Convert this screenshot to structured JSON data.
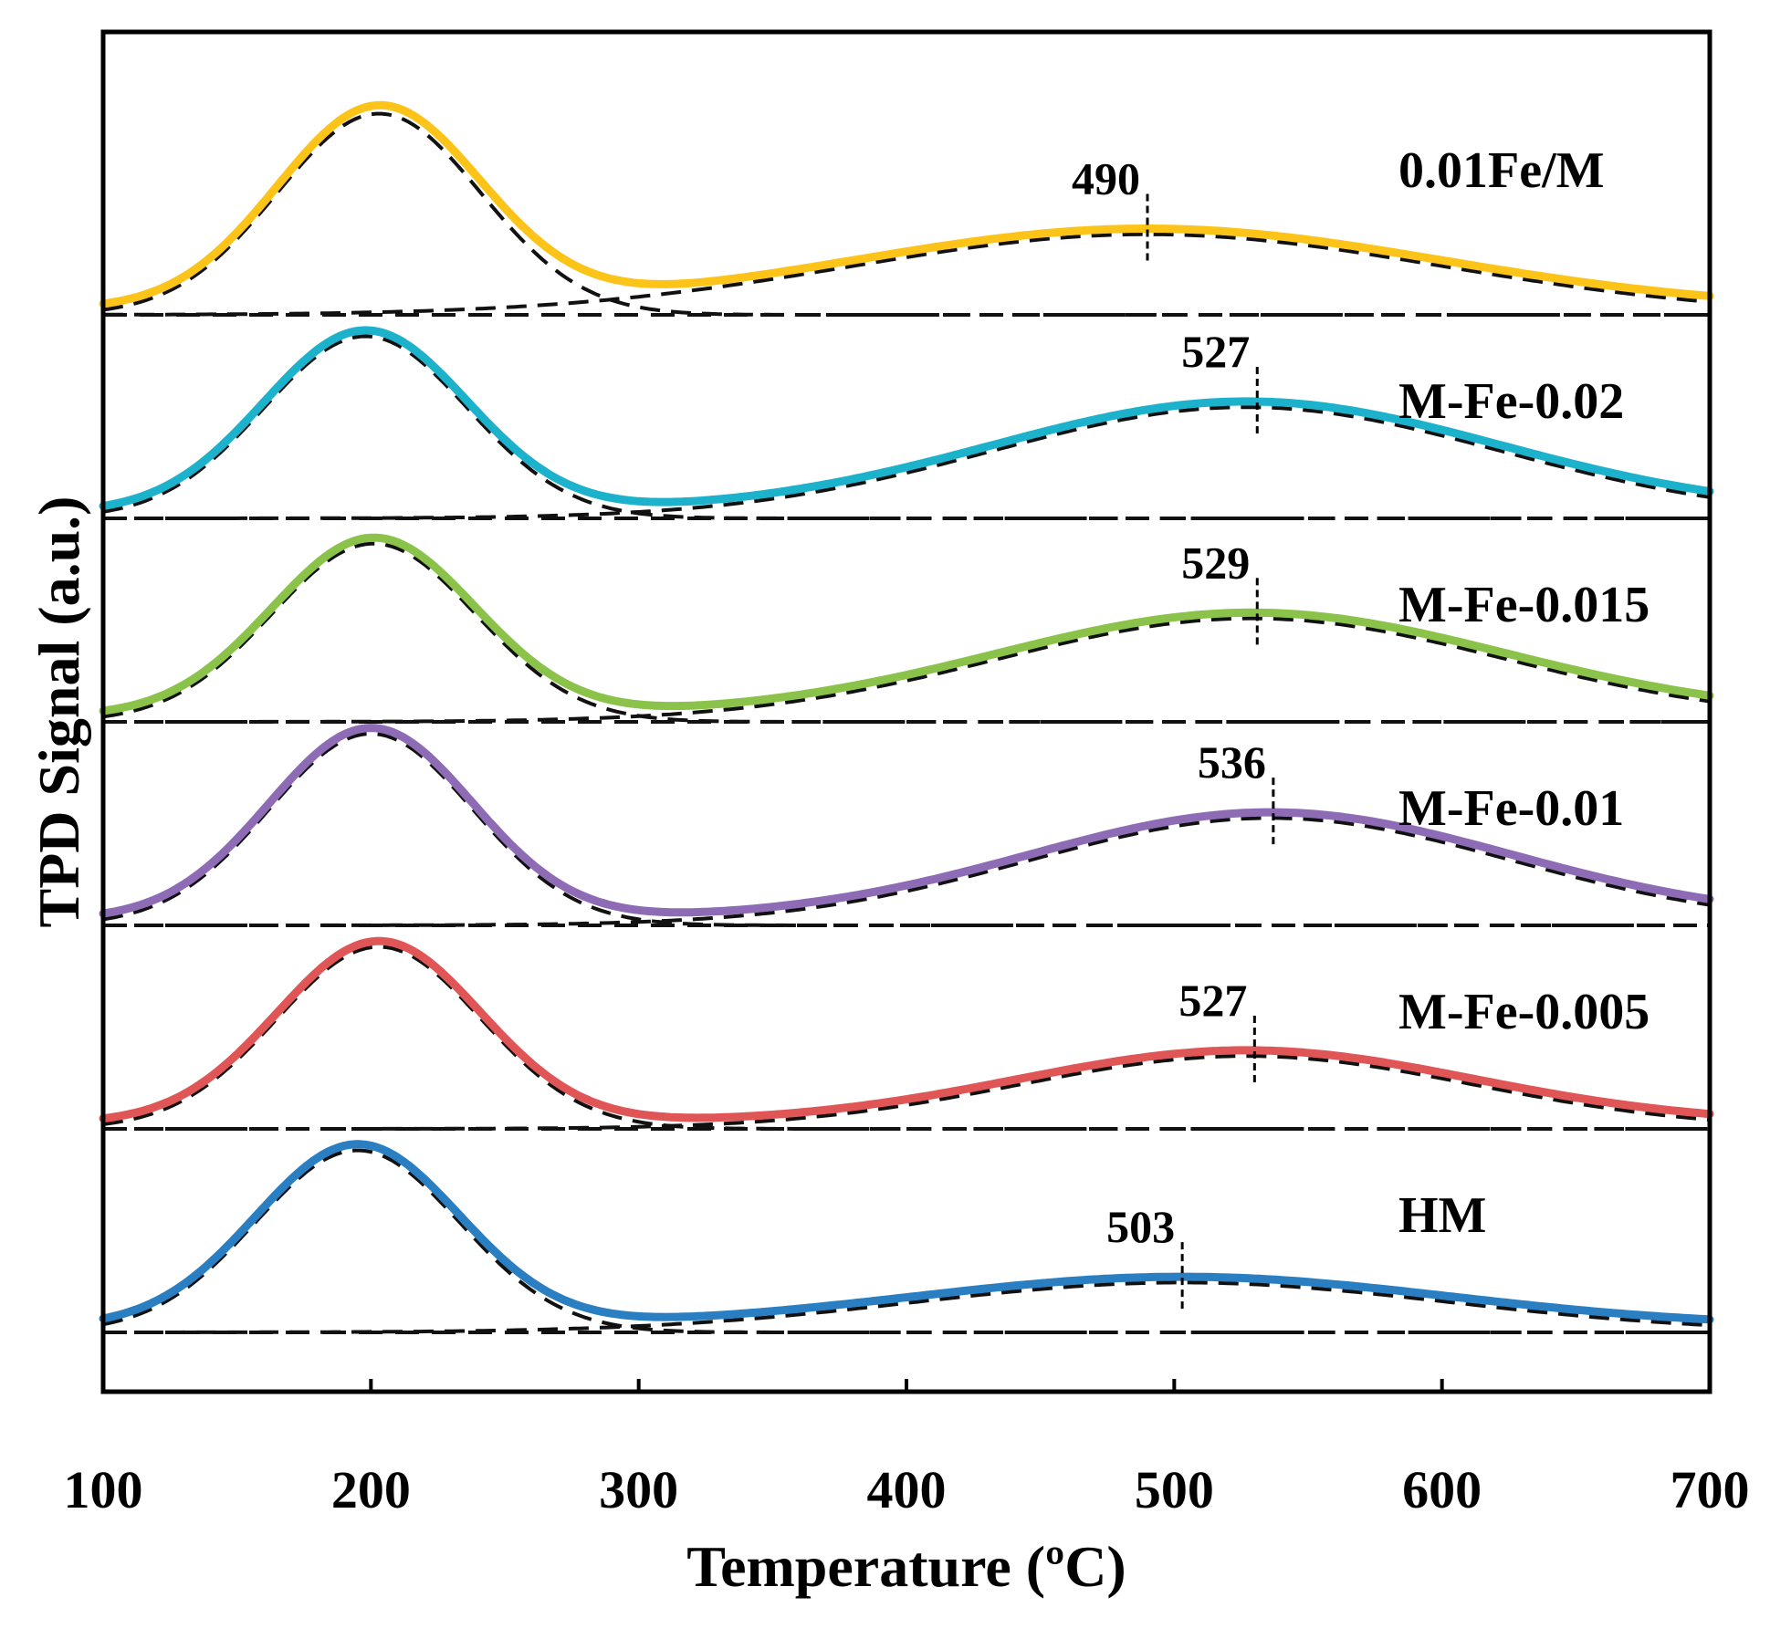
{
  "chart_data": {
    "type": "line",
    "title": "",
    "xlabel": "Temperature (ºC)",
    "ylabel": "TPD Signal (a.u.)",
    "xlim": [
      100,
      700
    ],
    "xticks": [
      "100",
      "200",
      "300",
      "400",
      "500",
      "600",
      "700"
    ],
    "xtick_values": [
      100,
      200,
      300,
      400,
      500,
      600,
      700
    ],
    "yticks_shown": false,
    "grid": false,
    "legend_placement": "inline labels at right of each curve",
    "series": [
      {
        "name": "0.01Fe/M",
        "color": "#FCC419",
        "baseline": 5,
        "low_temp_peak": {
          "center": 203,
          "height": 1.05,
          "width": 38
        },
        "high_temp_peak": {
          "center": 490,
          "height": 0.42,
          "width": 110
        },
        "peak_label": "490",
        "peak_marker": 490
      },
      {
        "name": "M-Fe-0.02",
        "color": "#1CB2CC",
        "baseline": 4,
        "low_temp_peak": {
          "center": 198,
          "height": 0.95,
          "width": 38
        },
        "high_temp_peak": {
          "center": 527,
          "height": 0.58,
          "width": 95
        },
        "peak_label": "527",
        "peak_marker": 531
      },
      {
        "name": "M-Fe-0.015",
        "color": "#8BC34A",
        "baseline": 3,
        "low_temp_peak": {
          "center": 201,
          "height": 0.93,
          "width": 38
        },
        "high_temp_peak": {
          "center": 529,
          "height": 0.54,
          "width": 95
        },
        "peak_label": "529",
        "peak_marker": 531
      },
      {
        "name": "M-Fe-0.01",
        "color": "#8E6BB5",
        "baseline": 2,
        "low_temp_peak": {
          "center": 200,
          "height": 1.0,
          "width": 38
        },
        "high_temp_peak": {
          "center": 536,
          "height": 0.56,
          "width": 90
        },
        "peak_label": "536",
        "peak_marker": 537
      },
      {
        "name": "M-Fe-0.005",
        "color": "#E05656",
        "baseline": 1,
        "low_temp_peak": {
          "center": 203,
          "height": 0.95,
          "width": 38
        },
        "high_temp_peak": {
          "center": 527,
          "height": 0.38,
          "width": 85
        },
        "peak_label": "527",
        "peak_marker": 530
      },
      {
        "name": "HM",
        "color": "#2A7EC2",
        "baseline": 0,
        "low_temp_peak": {
          "center": 195,
          "height": 0.95,
          "width": 38
        },
        "high_temp_peak": {
          "center": 503,
          "height": 0.26,
          "width": 100
        },
        "peak_label": "503",
        "peak_marker": 503
      }
    ]
  }
}
